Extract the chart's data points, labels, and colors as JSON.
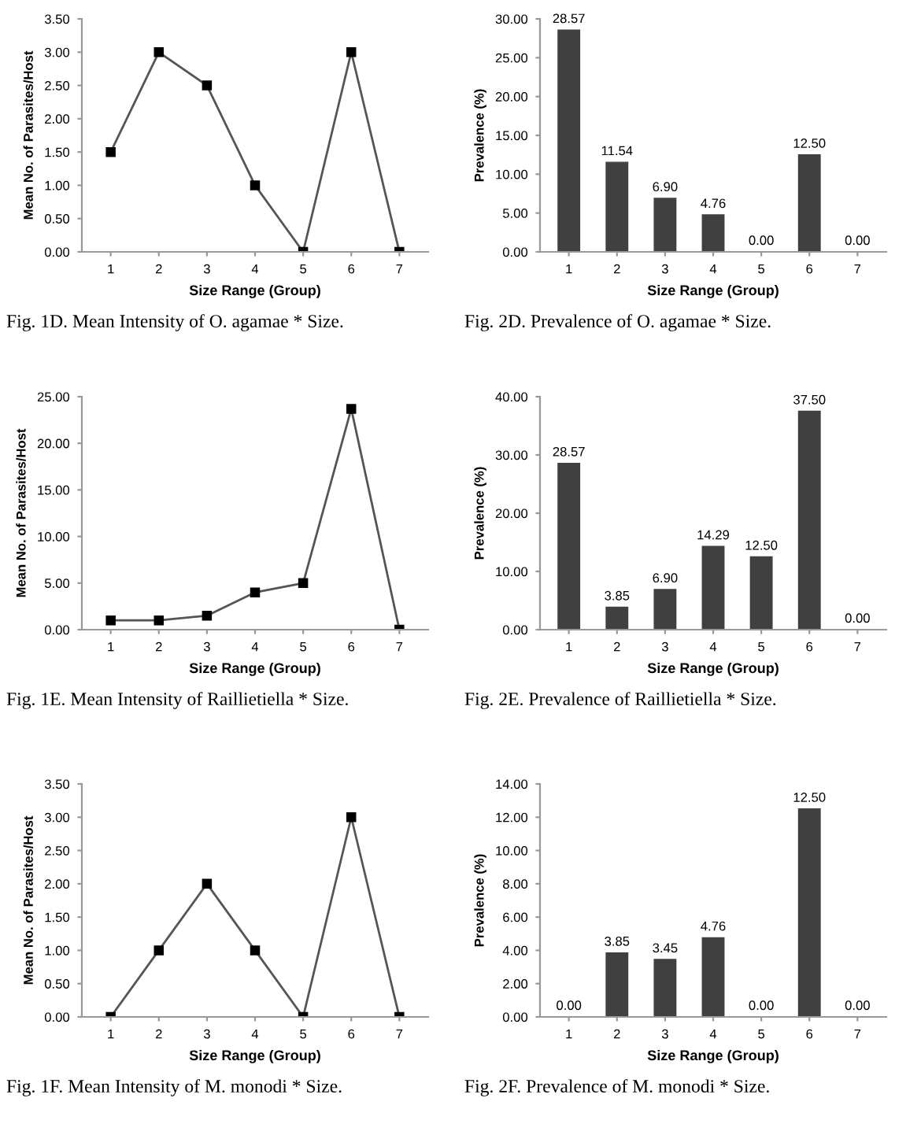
{
  "chart_data": [
    {
      "type": "line",
      "xlabel": "Size Range (Group)",
      "ylabel": "Mean No. of Parasites/Host",
      "categories": [
        "1",
        "2",
        "3",
        "4",
        "5",
        "6",
        "7"
      ],
      "values": [
        1.5,
        3.0,
        2.5,
        1.0,
        0.0,
        3.0,
        0.0
      ],
      "color": "#555555",
      "marker": "square",
      "ylim": [
        0,
        3.5
      ],
      "yticks": [
        {
          "value": 0,
          "label": "0.00"
        },
        {
          "value": 0.5,
          "label": "0.50"
        },
        {
          "value": 1,
          "label": "1.00"
        },
        {
          "value": 1.5,
          "label": "1.50"
        },
        {
          "value": 2,
          "label": "2.00"
        },
        {
          "value": 2.5,
          "label": "2.50"
        },
        {
          "value": 3,
          "label": "3.00"
        },
        {
          "value": 3.5,
          "label": "3.50"
        }
      ],
      "annotations": [
        "Fig. 1D. Mean Intensity of O. agamae * Size."
      ]
    },
    {
      "type": "bar",
      "xlabel": "Size Range (Group)",
      "ylabel": "Prevalence (%)",
      "categories": [
        "1",
        "2",
        "3",
        "4",
        "5",
        "6",
        "7"
      ],
      "values": [
        28.57,
        11.54,
        6.9,
        4.76,
        0.0,
        12.5,
        0.0
      ],
      "value_labels": [
        "28.57",
        "11.54",
        "6.90",
        "4.76",
        "0.00",
        "12.50",
        "0.00"
      ],
      "color": "#404040",
      "ylim": [
        0,
        30
      ],
      "yticks": [
        {
          "value": 0,
          "label": "0.00"
        },
        {
          "value": 5,
          "label": "5.00"
        },
        {
          "value": 10,
          "label": "10.00"
        },
        {
          "value": 15,
          "label": "15.00"
        },
        {
          "value": 20,
          "label": "20.00"
        },
        {
          "value": 25,
          "label": "25.00"
        },
        {
          "value": 30,
          "label": "30.00"
        }
      ],
      "annotations": [
        "Fig. 2D. Prevalence of O. agamae * Size."
      ]
    },
    {
      "type": "line",
      "xlabel": "Size Range (Group)",
      "ylabel": "Mean No. of Parasites/Host",
      "categories": [
        "1",
        "2",
        "3",
        "4",
        "5",
        "6",
        "7"
      ],
      "values": [
        1.0,
        1.0,
        1.5,
        4.0,
        5.0,
        23.7,
        0.0
      ],
      "color": "#555555",
      "marker": "square",
      "ylim": [
        0,
        25
      ],
      "yticks": [
        {
          "value": 0,
          "label": "0.00"
        },
        {
          "value": 5,
          "label": "5.00"
        },
        {
          "value": 10,
          "label": "10.00"
        },
        {
          "value": 15,
          "label": "15.00"
        },
        {
          "value": 20,
          "label": "20.00"
        },
        {
          "value": 25,
          "label": "25.00"
        }
      ],
      "annotations": [
        "Fig. 1E. Mean Intensity of Raillietiella * Size."
      ]
    },
    {
      "type": "bar",
      "xlabel": "Size Range (Group)",
      "ylabel": "Prevalence (%)",
      "categories": [
        "1",
        "2",
        "3",
        "4",
        "5",
        "6",
        "7"
      ],
      "values": [
        28.57,
        3.85,
        6.9,
        14.29,
        12.5,
        37.5,
        0.0
      ],
      "value_labels": [
        "28.57",
        "3.85",
        "6.90",
        "14.29",
        "12.50",
        "37.50",
        "0.00"
      ],
      "color": "#404040",
      "ylim": [
        0,
        40
      ],
      "yticks": [
        {
          "value": 0,
          "label": "0.00"
        },
        {
          "value": 10,
          "label": "10.00"
        },
        {
          "value": 20,
          "label": "20.00"
        },
        {
          "value": 30,
          "label": "30.00"
        },
        {
          "value": 40,
          "label": "40.00"
        }
      ],
      "annotations": [
        "Fig. 2E. Prevalence of Raillietiella * Size."
      ]
    },
    {
      "type": "line",
      "xlabel": "Size Range (Group)",
      "ylabel": "Mean No. of Parasites/Host",
      "categories": [
        "1",
        "2",
        "3",
        "4",
        "5",
        "6",
        "7"
      ],
      "values": [
        0.0,
        1.0,
        2.0,
        1.0,
        0.0,
        3.0,
        0.0
      ],
      "color": "#555555",
      "marker": "square",
      "ylim": [
        0,
        3.5
      ],
      "yticks": [
        {
          "value": 0,
          "label": "0.00"
        },
        {
          "value": 0.5,
          "label": "0.50"
        },
        {
          "value": 1,
          "label": "1.00"
        },
        {
          "value": 1.5,
          "label": "1.50"
        },
        {
          "value": 2,
          "label": "2.00"
        },
        {
          "value": 2.5,
          "label": "2.50"
        },
        {
          "value": 3,
          "label": "3.00"
        },
        {
          "value": 3.5,
          "label": "3.50"
        }
      ],
      "annotations": [
        "Fig. 1F. Mean Intensity of M. monodi * Size."
      ]
    },
    {
      "type": "bar",
      "xlabel": "Size Range (Group)",
      "ylabel": "Prevalence (%)",
      "categories": [
        "1",
        "2",
        "3",
        "4",
        "5",
        "6",
        "7"
      ],
      "values": [
        0.0,
        3.85,
        3.45,
        4.76,
        0.0,
        12.5,
        0.0
      ],
      "value_labels": [
        "0.00",
        "3.85",
        "3.45",
        "4.76",
        "0.00",
        "12.50",
        "0.00"
      ],
      "color": "#404040",
      "ylim": [
        0,
        14
      ],
      "yticks": [
        {
          "value": 0,
          "label": "0.00"
        },
        {
          "value": 2,
          "label": "2.00"
        },
        {
          "value": 4,
          "label": "4.00"
        },
        {
          "value": 6,
          "label": "6.00"
        },
        {
          "value": 8,
          "label": "8.00"
        },
        {
          "value": 10,
          "label": "10.00"
        },
        {
          "value": 12,
          "label": "12.00"
        },
        {
          "value": 14,
          "label": "14.00"
        }
      ],
      "annotations": [
        "Fig. 2F. Prevalence of M. monodi * Size."
      ]
    }
  ]
}
